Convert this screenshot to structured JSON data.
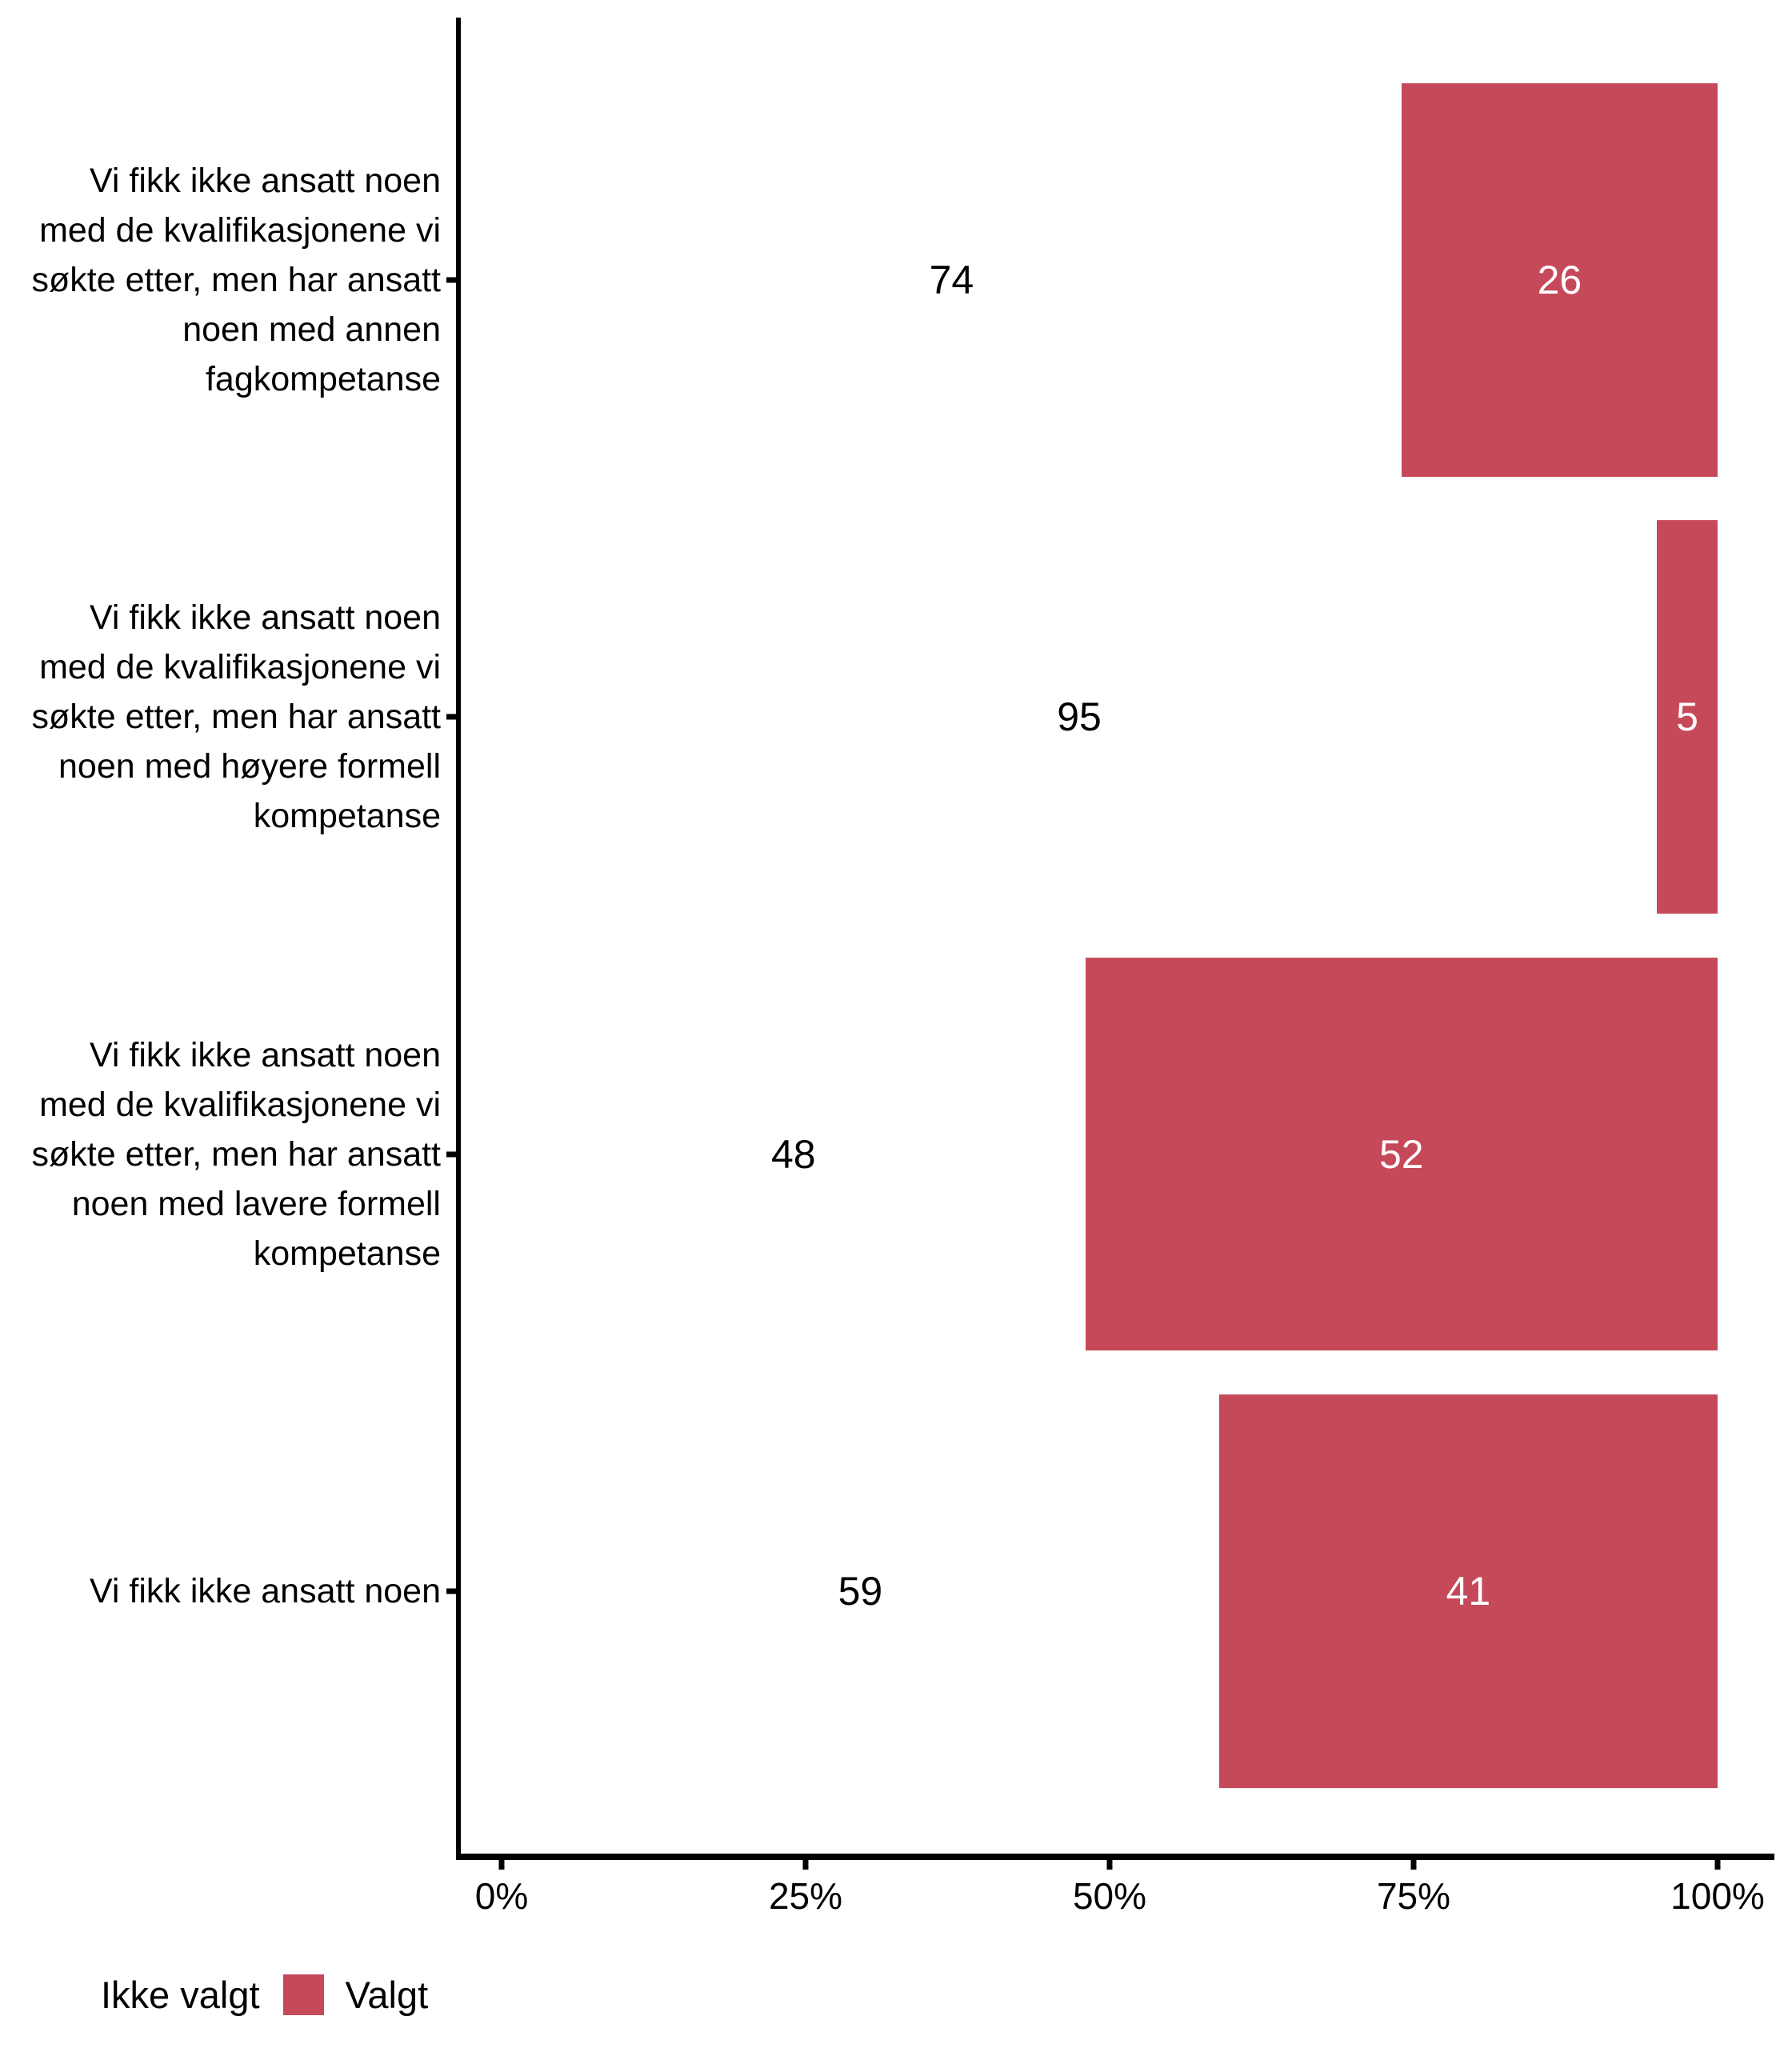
{
  "chart_data": {
    "type": "bar",
    "orientation": "horizontal",
    "stacked": true,
    "unit": "percent",
    "title": "",
    "xlabel": "",
    "ylabel": "",
    "xlim": [
      0,
      100
    ],
    "grid": false,
    "legend_position": "bottom-left",
    "categories": [
      "Vi fikk ikke ansatt noen med de kvalifikasjonene vi søkte etter, men har ansatt noen med annen fagkompetanse",
      "Vi fikk ikke ansatt noen med de kvalifikasjonene vi søkte etter, men har ansatt noen med høyere formell kompetanse",
      "Vi fikk ikke ansatt noen med de kvalifikasjonene vi søkte etter, men har ansatt noen med lavere formell kompetanse",
      "Vi fikk ikke ansatt noen"
    ],
    "series": [
      {
        "name": "Ikke valgt",
        "color": "#FFFFFF",
        "label_color": "#000000",
        "values": [
          74,
          95,
          48,
          59
        ]
      },
      {
        "name": "Valgt",
        "color": "#C6495A",
        "label_color": "#FFFFFF",
        "values": [
          26,
          5,
          52,
          41
        ]
      }
    ],
    "x_tick_labels": [
      "0%",
      "25%",
      "50%",
      "75%",
      "100%"
    ]
  },
  "legend": {
    "items": [
      {
        "label": "Ikke valgt",
        "swatch_color": "#FFFFFF"
      },
      {
        "label": "Valgt",
        "swatch_color": "#C6495A"
      }
    ]
  },
  "colors": {
    "background": "#FFFFFF",
    "axis": "#000000",
    "text": "#000000",
    "accent_red": "#C6495A"
  }
}
